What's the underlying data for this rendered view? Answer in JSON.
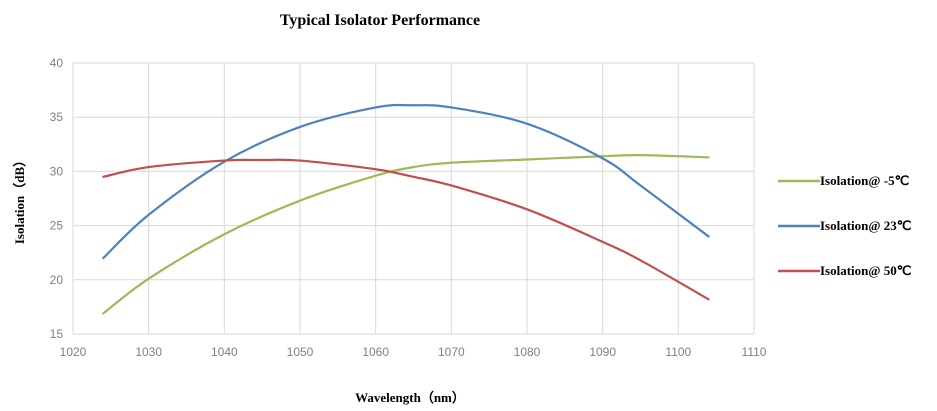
{
  "chart_data": {
    "type": "line",
    "title": "Typical Isolator Performance",
    "xlabel": "Wavelength（nm）",
    "ylabel": "Isolation（dB）",
    "xlim": [
      1020,
      1110
    ],
    "ylim": [
      15,
      40
    ],
    "xticks": [
      1020,
      1030,
      1040,
      1050,
      1060,
      1070,
      1080,
      1090,
      1100,
      1110
    ],
    "yticks": [
      15,
      20,
      25,
      30,
      35,
      40
    ],
    "grid": true,
    "legend_position": "right",
    "series": [
      {
        "name": "Isolation@ -5℃",
        "color": "#9bbb59",
        "x": [
          1024,
          1030,
          1040,
          1050,
          1060,
          1065,
          1070,
          1080,
          1090,
          1095,
          1104
        ],
        "y": [
          16.9,
          20.1,
          24.2,
          27.3,
          29.6,
          30.4,
          30.8,
          31.1,
          31.4,
          31.5,
          31.3
        ]
      },
      {
        "name": "Isolation@ 23℃",
        "color": "#4f81bd",
        "x": [
          1024,
          1030,
          1040,
          1050,
          1060,
          1065,
          1070,
          1080,
          1090,
          1095,
          1104
        ],
        "y": [
          22.0,
          26.0,
          30.9,
          34.1,
          35.9,
          36.1,
          35.9,
          34.4,
          31.2,
          28.7,
          24.0
        ]
      },
      {
        "name": "Isolation@ 50℃",
        "color": "#c0504d",
        "x": [
          1024,
          1030,
          1040,
          1045,
          1050,
          1060,
          1065,
          1070,
          1080,
          1090,
          1095,
          1104
        ],
        "y": [
          29.5,
          30.4,
          31.0,
          31.05,
          31.0,
          30.2,
          29.5,
          28.7,
          26.5,
          23.5,
          21.8,
          18.2
        ]
      }
    ]
  }
}
